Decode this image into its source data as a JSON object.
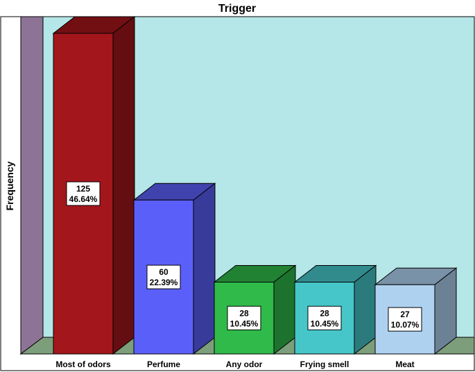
{
  "chart_data": {
    "type": "bar",
    "title": "Trigger",
    "xlabel": "",
    "ylabel": "Frequency",
    "categories": [
      "Most of odors",
      "Perfume",
      "Any odor",
      "Frying smell",
      "Meat"
    ],
    "values": [
      125,
      60,
      28,
      28,
      27
    ],
    "percent_labels": [
      "46.64%",
      "22.39%",
      "10.45%",
      "10.45%",
      "10.07%"
    ],
    "bar_colors": [
      "#a3161b",
      "#5b5ff9",
      "#2fba4a",
      "#46c6c9",
      "#aed1ef"
    ],
    "ylim": [
      0,
      125
    ],
    "grid": false,
    "legend": "none",
    "style": "3d",
    "background_color": "#b5e6e8",
    "side_wall_color": "#8d7496",
    "floor_color": "#7d9e7b"
  }
}
